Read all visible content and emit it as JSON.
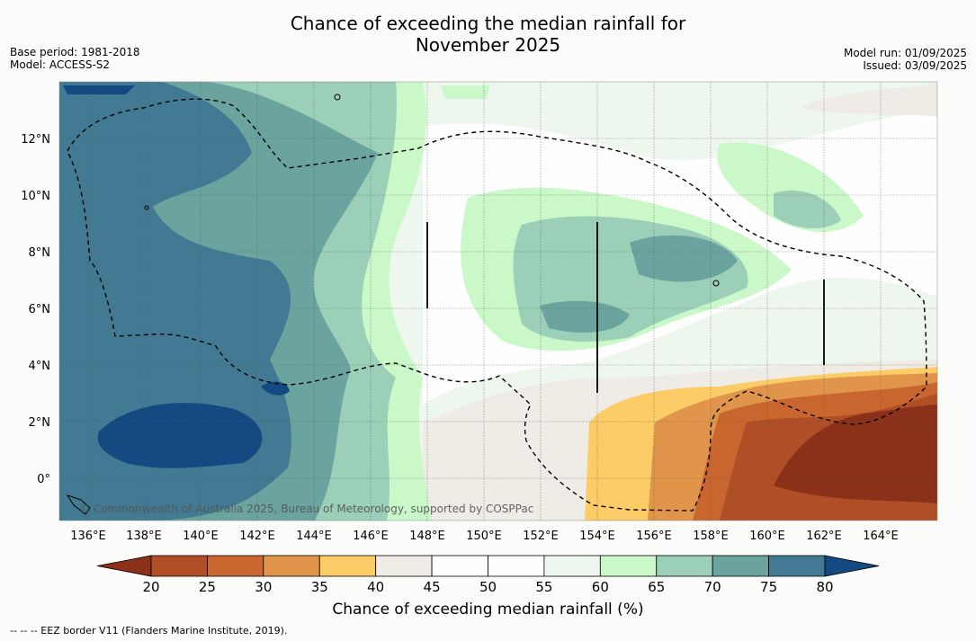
{
  "title_line1": "Chance of exceeding the median rainfall for",
  "title_line2": "November 2025",
  "base_period": "Base period: 1981-2018",
  "model": "Model: ACCESS-S2",
  "model_run": "Model run: 01/09/2025",
  "issued": "Issued: 03/09/2025",
  "copyright": "© Commonwealth of Australia 2025, Bureau of Meteorology, supported by COSPPac",
  "colorbar_label": "Chance of exceeding median rainfall (%)",
  "footer": "-- -- -- EEZ border V11 (Flanders Marine Institute, 2019).",
  "lon_ticks": [
    "136°E",
    "138°E",
    "140°E",
    "142°E",
    "144°E",
    "146°E",
    "148°E",
    "150°E",
    "152°E",
    "154°E",
    "156°E",
    "158°E",
    "160°E",
    "162°E",
    "164°E"
  ],
  "lat_ticks": [
    "12°N",
    "10°N",
    "8°N",
    "6°N",
    "4°N",
    "2°N",
    "0°"
  ],
  "colorbar_ticks": [
    "20",
    "25",
    "30",
    "35",
    "40",
    "45",
    "50",
    "55",
    "60",
    "65",
    "70",
    "75",
    "80"
  ],
  "colorbar_colors": [
    "#8b3019",
    "#b04f27",
    "#c9662f",
    "#e0954a",
    "#fccc66",
    "#efebe5",
    "#fefefe",
    "#fefefe",
    "#eef7ee",
    "#caf8c8",
    "#9ccfb8",
    "#6ba39f",
    "#437a93",
    "#134a82"
  ],
  "colors": {
    "ocean_high": "#134a82",
    "ocean_dry": "#8b3019"
  }
}
